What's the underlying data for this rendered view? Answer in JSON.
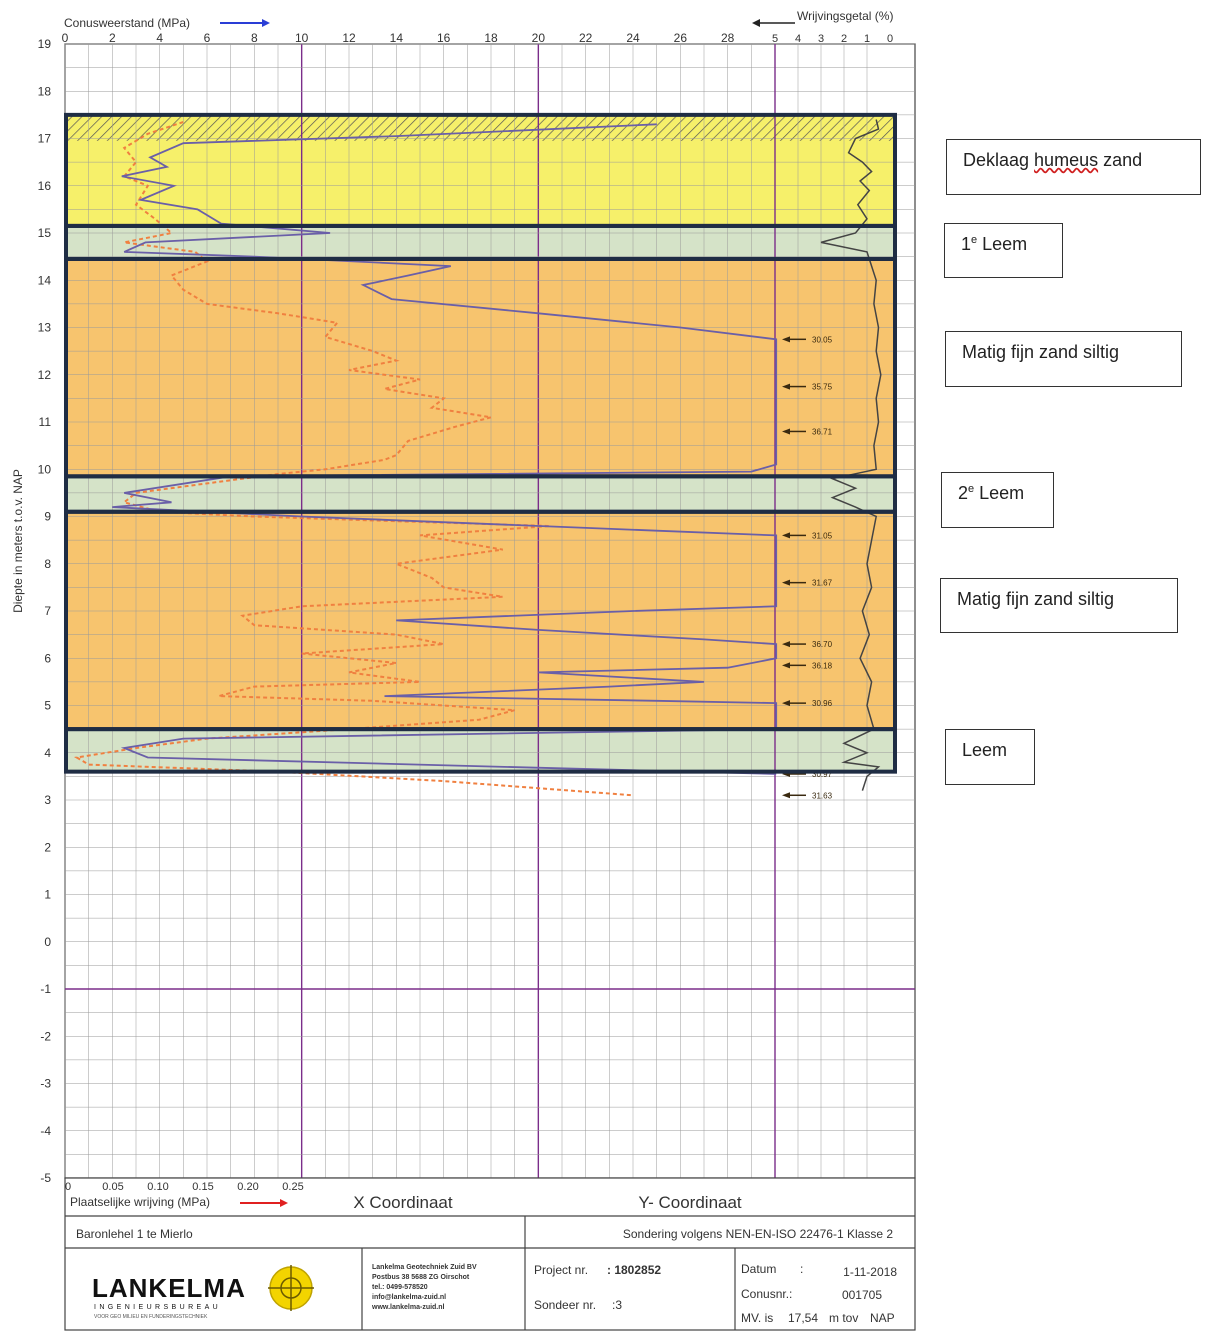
{
  "chart_data": {
    "type": "line",
    "top_axis_label": "Conusweerstand (MPa)",
    "top_axis_ticks": [
      "0",
      "2",
      "4",
      "6",
      "8",
      "10",
      "12",
      "14",
      "16",
      "18",
      "20",
      "22",
      "24",
      "26",
      "28"
    ],
    "friction_ratio_label": "Wrijvingsgetal (%)",
    "friction_ratio_ticks": [
      "5",
      "4",
      "3",
      "2",
      "1",
      "0"
    ],
    "ylabel": "Diepte in meters t.o.v. NAP",
    "y_ticks": [
      19,
      18,
      17,
      16,
      15,
      14,
      13,
      12,
      11,
      10,
      9,
      8,
      7,
      6,
      5,
      4,
      3,
      2,
      1,
      0,
      -1,
      -2,
      -3,
      -4,
      -5
    ],
    "ylim": [
      -5,
      19
    ],
    "bottom_axis_label": "Plaatselijke wrijving (MPa)",
    "bottom_axis_ticks": [
      "0",
      "0.05",
      "0.10",
      "0.15",
      "0.20",
      "0.25"
    ],
    "x_coord_label": "X Coordinaat",
    "y_coord_label": "Y- Coordinaat",
    "overflow_values": [
      "30.05",
      "35.75",
      "36.71",
      "31.05",
      "31.67",
      "36.70",
      "36.18",
      "30.96",
      "30.97",
      "31.63"
    ],
    "overflow_value_depths": [
      12.75,
      11.75,
      10.8,
      8.6,
      7.6,
      6.3,
      5.85,
      5.05,
      3.55,
      3.1
    ],
    "layers": [
      {
        "name": "Deklaag humeus zand",
        "top": 17.5,
        "bottom": 15.15,
        "color": "#f6f06a"
      },
      {
        "name": "1e Leem",
        "top": 15.15,
        "bottom": 14.45,
        "color": "#d5e3c8"
      },
      {
        "name": "Matig fijn zand siltig",
        "top": 14.45,
        "bottom": 9.85,
        "color": "#f7c46e"
      },
      {
        "name": "2e Leem",
        "top": 9.85,
        "bottom": 9.1,
        "color": "#d5e3c8"
      },
      {
        "name": "Matig fijn zand siltig",
        "top": 9.1,
        "bottom": 4.5,
        "color": "#f7c46e"
      },
      {
        "name": "Leem",
        "top": 4.5,
        "bottom": 3.6,
        "color": "#d5e3c8"
      }
    ],
    "series": [
      {
        "name": "Conusweerstand",
        "color": "#6a5fa8",
        "points": [
          [
            25.0,
            17.3
          ],
          [
            14.0,
            17.05
          ],
          [
            5.0,
            16.9
          ],
          [
            3.6,
            16.6
          ],
          [
            4.3,
            16.4
          ],
          [
            2.4,
            16.2
          ],
          [
            4.6,
            16.0
          ],
          [
            3.2,
            15.7
          ],
          [
            5.6,
            15.5
          ],
          [
            6.6,
            15.2
          ],
          [
            11.2,
            15.0
          ],
          [
            3.4,
            14.8
          ],
          [
            2.5,
            14.6
          ],
          [
            8.0,
            14.5
          ],
          [
            16.3,
            14.3
          ],
          [
            14.5,
            14.1
          ],
          [
            12.6,
            13.9
          ],
          [
            13.8,
            13.6
          ],
          [
            20.0,
            13.3
          ],
          [
            26.0,
            13.0
          ],
          [
            30.05,
            12.75
          ],
          [
            30.05,
            10.1
          ],
          [
            29.0,
            9.95
          ],
          [
            7.0,
            9.85
          ],
          [
            2.5,
            9.5
          ],
          [
            4.5,
            9.3
          ],
          [
            2.0,
            9.2
          ],
          [
            10.0,
            9.0
          ],
          [
            25.0,
            8.7
          ],
          [
            30.05,
            8.6
          ],
          [
            30.05,
            7.1
          ],
          [
            24.0,
            7.0
          ],
          [
            14.0,
            6.8
          ],
          [
            20.0,
            6.6
          ],
          [
            27.0,
            6.4
          ],
          [
            30.05,
            6.3
          ],
          [
            30.05,
            6.0
          ],
          [
            28.0,
            5.8
          ],
          [
            20.0,
            5.7
          ],
          [
            27.0,
            5.5
          ],
          [
            23.0,
            5.4
          ],
          [
            13.5,
            5.2
          ],
          [
            25.0,
            5.1
          ],
          [
            30.05,
            5.05
          ],
          [
            30.05,
            4.5
          ],
          [
            5.0,
            4.3
          ],
          [
            2.5,
            4.1
          ],
          [
            3.5,
            3.9
          ],
          [
            30.05,
            3.55
          ]
        ]
      },
      {
        "name": "Plaatselijke wrijving",
        "color": "#f08040",
        "points": [
          [
            5.0,
            17.35
          ],
          [
            3.5,
            17.1
          ],
          [
            2.5,
            16.8
          ],
          [
            3.0,
            16.5
          ],
          [
            2.5,
            16.2
          ],
          [
            3.5,
            16.0
          ],
          [
            3.0,
            15.6
          ],
          [
            3.8,
            15.3
          ],
          [
            4.5,
            15.0
          ],
          [
            2.5,
            14.8
          ],
          [
            5.5,
            14.6
          ],
          [
            6.0,
            14.4
          ],
          [
            4.5,
            14.1
          ],
          [
            5.0,
            13.8
          ],
          [
            6.0,
            13.5
          ],
          [
            9.0,
            13.3
          ],
          [
            11.5,
            13.1
          ],
          [
            11.0,
            12.8
          ],
          [
            13.0,
            12.5
          ],
          [
            14.0,
            12.3
          ],
          [
            12.0,
            12.1
          ],
          [
            15.0,
            11.9
          ],
          [
            13.5,
            11.7
          ],
          [
            16.0,
            11.5
          ],
          [
            15.5,
            11.3
          ],
          [
            18.0,
            11.1
          ],
          [
            16.5,
            10.9
          ],
          [
            14.5,
            10.6
          ],
          [
            14.0,
            10.3
          ],
          [
            13.5,
            10.2
          ],
          [
            11.0,
            10.0
          ],
          [
            9.0,
            9.9
          ],
          [
            6.0,
            9.7
          ],
          [
            3.0,
            9.5
          ],
          [
            2.5,
            9.3
          ],
          [
            4.0,
            9.1
          ],
          [
            8.0,
            9.0
          ],
          [
            14.0,
            8.9
          ],
          [
            20.5,
            8.8
          ],
          [
            15.0,
            8.6
          ],
          [
            18.5,
            8.3
          ],
          [
            14.0,
            8.0
          ],
          [
            15.5,
            7.7
          ],
          [
            16.0,
            7.5
          ],
          [
            18.5,
            7.3
          ],
          [
            10.0,
            7.1
          ],
          [
            7.5,
            6.9
          ],
          [
            8.0,
            6.7
          ],
          [
            14.0,
            6.5
          ],
          [
            16.0,
            6.3
          ],
          [
            10.0,
            6.1
          ],
          [
            14.0,
            5.9
          ],
          [
            12.0,
            5.7
          ],
          [
            15.0,
            5.5
          ],
          [
            8.0,
            5.4
          ],
          [
            6.5,
            5.2
          ],
          [
            13.0,
            5.1
          ],
          [
            19.0,
            4.9
          ],
          [
            17.5,
            4.7
          ],
          [
            12.0,
            4.5
          ],
          [
            6.0,
            4.3
          ],
          [
            3.0,
            4.1
          ],
          [
            0.5,
            3.9
          ],
          [
            1.0,
            3.75
          ],
          [
            9.0,
            3.6
          ],
          [
            16.0,
            3.4
          ],
          [
            24.0,
            3.1
          ]
        ]
      },
      {
        "name": "Wrijvingsgetal",
        "color": "#444444",
        "points": [
          [
            0.6,
            17.4
          ],
          [
            0.5,
            17.2
          ],
          [
            1.5,
            17.0
          ],
          [
            1.8,
            16.7
          ],
          [
            1.2,
            16.5
          ],
          [
            0.8,
            16.3
          ],
          [
            1.3,
            16.1
          ],
          [
            0.9,
            15.9
          ],
          [
            1.4,
            15.6
          ],
          [
            1.0,
            15.3
          ],
          [
            1.5,
            15.0
          ],
          [
            3.0,
            14.8
          ],
          [
            1.0,
            14.6
          ],
          [
            0.8,
            14.3
          ],
          [
            0.6,
            14.0
          ],
          [
            0.7,
            13.5
          ],
          [
            0.5,
            13.0
          ],
          [
            0.6,
            12.5
          ],
          [
            0.4,
            12.0
          ],
          [
            0.6,
            11.5
          ],
          [
            0.5,
            11.0
          ],
          [
            0.7,
            10.5
          ],
          [
            0.6,
            10.0
          ],
          [
            2.5,
            9.8
          ],
          [
            1.5,
            9.6
          ],
          [
            2.5,
            9.4
          ],
          [
            1.5,
            9.2
          ],
          [
            0.6,
            9.0
          ],
          [
            0.8,
            8.5
          ],
          [
            1.0,
            8.0
          ],
          [
            0.8,
            7.5
          ],
          [
            1.2,
            7.0
          ],
          [
            0.9,
            6.5
          ],
          [
            1.3,
            6.0
          ],
          [
            0.8,
            5.5
          ],
          [
            1.0,
            5.0
          ],
          [
            0.7,
            4.5
          ],
          [
            2.0,
            4.2
          ],
          [
            1.0,
            4.0
          ],
          [
            2.0,
            3.8
          ],
          [
            0.5,
            3.7
          ],
          [
            1.0,
            3.5
          ],
          [
            1.2,
            3.2
          ]
        ]
      }
    ],
    "grid": true
  },
  "annotations": [
    {
      "pre": "Deklaag ",
      "err": "humeus",
      "post": " zand"
    },
    {
      "pre": "1",
      "sup": "e",
      "post": " Leem"
    },
    {
      "pre": "Matig fijn zand siltig"
    },
    {
      "pre": "2",
      "sup": "e",
      "post": " Leem"
    },
    {
      "pre": "Matig fijn zand siltig"
    },
    {
      "pre": "Leem"
    }
  ],
  "title_block": {
    "location": "Baronlehel 1 te Mierlo",
    "standard": "Sondering volgens NEN-EN-ISO 22476-1 Klasse 2",
    "logo": "LANKELMA",
    "logo_sub": "INGENIEURSBUREAU",
    "logo_tag": "VOOR GEO MILIEU EN FUNDERINGSTECHNIEK",
    "address": [
      "Lankelma Geotechniek Zuid BV",
      "Postbus 38 5688 ZG Oirschot",
      "tel.: 0499-578520",
      "info@lankelma-zuid.nl",
      "www.lankelma-zuid.nl"
    ],
    "project_label": "Project nr.",
    "project_value": ": 1802852",
    "sondeer_label": "Sondeer nr.",
    "sondeer_value": ":3",
    "datum_label": "Datum",
    "datum_value": "1-11-2018",
    "conus_label": "Conusnr.:",
    "conus_value": "001705",
    "mv_label": "MV. is",
    "mv_value": "17,54",
    "mv_unit": "m tov",
    "mv_ref": "NAP"
  }
}
